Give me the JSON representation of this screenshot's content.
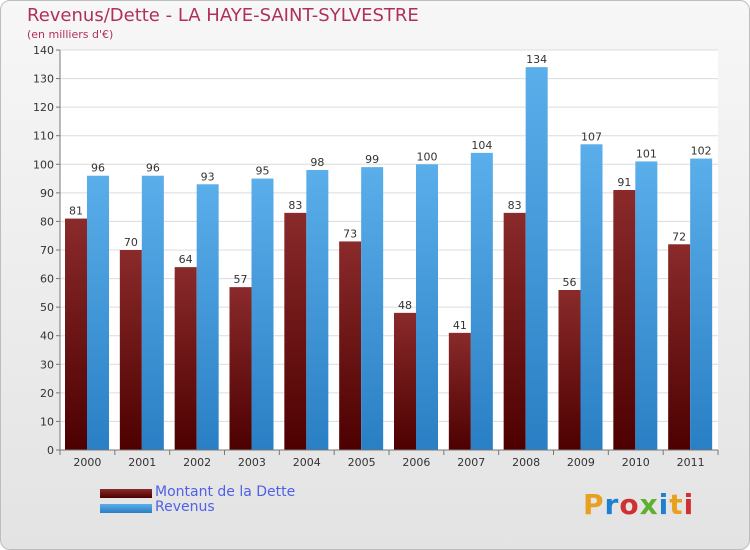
{
  "header": {
    "title": "Revenus/Dette - LA HAYE-SAINT-SYLVESTRE",
    "subtitle": "(en milliers d'€)"
  },
  "legend": {
    "items": [
      {
        "label": "Montant de la Dette",
        "color": "#6b0f10"
      },
      {
        "label": "Revenus",
        "color": "#4aa3e6"
      }
    ]
  },
  "logo": {
    "text": "Proxiti",
    "letter_colors": [
      "#e8a020",
      "#2080d0",
      "#d03030",
      "#60b030",
      "#2080d0",
      "#e8a020",
      "#d03030"
    ]
  },
  "chart_data": {
    "type": "bar",
    "title": "Revenus/Dette - LA HAYE-SAINT-SYLVESTRE",
    "subtitle": "(en milliers d'€)",
    "categories": [
      "2000",
      "2001",
      "2002",
      "2003",
      "2004",
      "2005",
      "2006",
      "2007",
      "2008",
      "2009",
      "2010",
      "2011"
    ],
    "series": [
      {
        "name": "Montant de la Dette",
        "color": "#6b0f10",
        "values": [
          81,
          70,
          64,
          57,
          83,
          73,
          48,
          41,
          83,
          56,
          91,
          72
        ]
      },
      {
        "name": "Revenus",
        "color": "#4aa3e6",
        "values": [
          96,
          96,
          93,
          95,
          98,
          99,
          100,
          104,
          134,
          107,
          101,
          102
        ]
      }
    ],
    "ylim": [
      0,
      140
    ],
    "yticks": [
      0,
      10,
      20,
      30,
      40,
      50,
      60,
      70,
      80,
      90,
      100,
      110,
      120,
      130,
      140
    ],
    "grid": true,
    "legend_position": "bottom-left",
    "data_labels": true
  }
}
